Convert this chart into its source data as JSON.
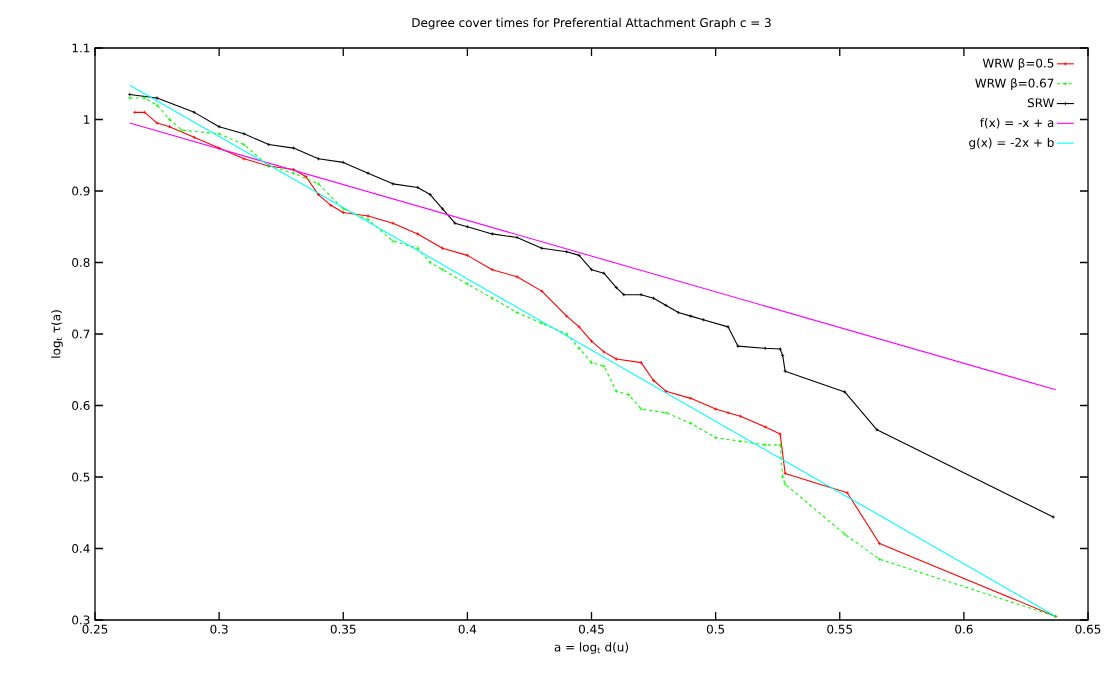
{
  "chart_data": {
    "type": "line",
    "title": "Degree cover times for Preferential Attachment Graph c = 3",
    "xlabel": "a = log$_{t}$ d(u)",
    "ylabel": "log$_{t}$ τ(a)",
    "xlim": [
      0.25,
      0.65
    ],
    "ylim": [
      0.3,
      1.1
    ],
    "xticks": [
      0.25,
      0.3,
      0.35,
      0.4,
      0.45,
      0.5,
      0.55,
      0.6,
      0.65
    ],
    "yticks": [
      0.3,
      0.4,
      0.5,
      0.6,
      0.7,
      0.8,
      0.9,
      1,
      1.1
    ],
    "legend": "top right",
    "grid": false,
    "series": [
      {
        "name": "WRW β=0.5",
        "color": "#ff0000",
        "marker": "cross",
        "line_style": "solid",
        "x": [
          0.266,
          0.27,
          0.275,
          0.28,
          0.29,
          0.3,
          0.31,
          0.32,
          0.33,
          0.335,
          0.34,
          0.345,
          0.35,
          0.36,
          0.37,
          0.38,
          0.39,
          0.4,
          0.41,
          0.42,
          0.43,
          0.44,
          0.445,
          0.45,
          0.455,
          0.46,
          0.47,
          0.475,
          0.48,
          0.49,
          0.5,
          0.505,
          0.51,
          0.52,
          0.526,
          0.528,
          0.553,
          0.566,
          0.637
        ],
        "values": [
          1.01,
          1.01,
          0.995,
          0.99,
          0.975,
          0.96,
          0.945,
          0.935,
          0.93,
          0.92,
          0.895,
          0.88,
          0.87,
          0.865,
          0.855,
          0.84,
          0.82,
          0.81,
          0.79,
          0.78,
          0.76,
          0.725,
          0.71,
          0.69,
          0.675,
          0.665,
          0.66,
          0.635,
          0.62,
          0.61,
          0.595,
          0.59,
          0.585,
          0.57,
          0.56,
          0.505,
          0.478,
          0.407,
          0.305
        ]
      },
      {
        "name": "WRW β=0.67",
        "color": "#00ff00",
        "marker": "cross",
        "line_style": "dashed",
        "x": [
          0.264,
          0.27,
          0.275,
          0.28,
          0.285,
          0.3,
          0.31,
          0.32,
          0.33,
          0.34,
          0.35,
          0.36,
          0.37,
          0.38,
          0.385,
          0.39,
          0.4,
          0.41,
          0.42,
          0.43,
          0.44,
          0.445,
          0.45,
          0.455,
          0.46,
          0.465,
          0.47,
          0.48,
          0.49,
          0.5,
          0.51,
          0.52,
          0.526,
          0.527,
          0.528,
          0.552,
          0.566,
          0.637
        ],
        "values": [
          1.03,
          1.03,
          1.02,
          1.0,
          0.985,
          0.98,
          0.965,
          0.935,
          0.925,
          0.91,
          0.875,
          0.86,
          0.83,
          0.82,
          0.8,
          0.79,
          0.77,
          0.75,
          0.73,
          0.715,
          0.7,
          0.68,
          0.66,
          0.655,
          0.62,
          0.615,
          0.595,
          0.59,
          0.575,
          0.555,
          0.55,
          0.545,
          0.545,
          0.5,
          0.49,
          0.42,
          0.385,
          0.305
        ]
      },
      {
        "name": "SRW",
        "color": "#000000",
        "marker": "cross",
        "line_style": "solid",
        "x": [
          0.264,
          0.275,
          0.29,
          0.3,
          0.31,
          0.32,
          0.33,
          0.34,
          0.35,
          0.36,
          0.37,
          0.38,
          0.385,
          0.39,
          0.395,
          0.4,
          0.41,
          0.42,
          0.43,
          0.44,
          0.445,
          0.45,
          0.455,
          0.46,
          0.463,
          0.47,
          0.475,
          0.48,
          0.485,
          0.49,
          0.495,
          0.505,
          0.509,
          0.52,
          0.526,
          0.527,
          0.528,
          0.552,
          0.565,
          0.636
        ],
        "values": [
          1.035,
          1.03,
          1.01,
          0.99,
          0.98,
          0.965,
          0.96,
          0.945,
          0.94,
          0.925,
          0.91,
          0.905,
          0.895,
          0.875,
          0.855,
          0.85,
          0.84,
          0.835,
          0.82,
          0.815,
          0.81,
          0.79,
          0.785,
          0.765,
          0.755,
          0.755,
          0.75,
          0.74,
          0.73,
          0.725,
          0.72,
          0.71,
          0.683,
          0.68,
          0.679,
          0.67,
          0.648,
          0.619,
          0.566,
          0.444
        ]
      },
      {
        "name": "f(x) = -x + a",
        "color": "#ff00ff",
        "marker": "none",
        "line_style": "solid",
        "x": [
          0.264,
          0.637
        ],
        "values": [
          0.995,
          0.622
        ]
      },
      {
        "name": "g(x) = -2x + b",
        "color": "#00ffff",
        "marker": "none",
        "line_style": "solid",
        "x": [
          0.264,
          0.637
        ],
        "values": [
          1.048,
          0.305
        ]
      }
    ]
  }
}
